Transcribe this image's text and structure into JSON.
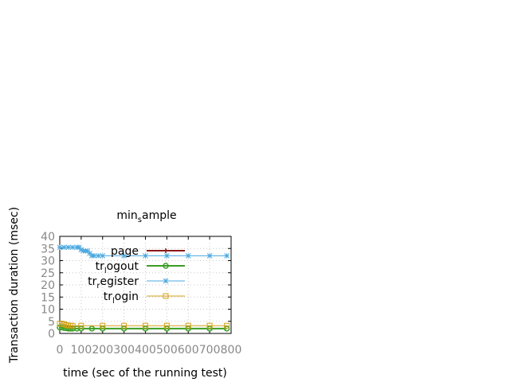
{
  "chart_data": {
    "type": "line",
    "title": "min_sample",
    "title_main": "min",
    "title_sub": "s",
    "title_rest": "ample",
    "xlabel": "time (sec of the running test)",
    "ylabel": "Transaction duration (msec)",
    "xlim": [
      0,
      800
    ],
    "ylim": [
      0,
      40
    ],
    "xticks": [
      "0",
      "100",
      "200",
      "300",
      "400",
      "500",
      "600",
      "700",
      "800"
    ],
    "yticks": [
      "0",
      "5",
      "10",
      "15",
      "20",
      "25",
      "30",
      "35",
      "40"
    ],
    "grid": true,
    "legend_position": "top-right",
    "series": [
      {
        "name": "page",
        "name_main": "page",
        "name_sub": "",
        "name_rest": "",
        "color": "#8b1a1a",
        "marker": "plus",
        "line_width": 2,
        "x": [],
        "y": []
      },
      {
        "name": "tr_logout",
        "name_main": "tr",
        "name_sub": "l",
        "name_rest": "ogout",
        "color": "#3a9d23",
        "marker": "circle",
        "line_width": 2,
        "x": [
          0,
          10,
          20,
          30,
          40,
          50,
          60,
          80,
          100,
          150,
          200,
          300,
          400,
          500,
          600,
          700,
          780
        ],
        "y": [
          2.5,
          2.5,
          2.3,
          2.2,
          2.0,
          2.0,
          2.0,
          2.0,
          2.0,
          2.0,
          2.0,
          2.0,
          2.0,
          2.0,
          2.0,
          2.0,
          2.0
        ]
      },
      {
        "name": "tr_register",
        "name_main": "tr",
        "name_sub": "r",
        "name_rest": "egister",
        "color": "#4aa8e0",
        "marker": "star",
        "line_width": 1,
        "x": [
          0,
          20,
          40,
          60,
          80,
          90,
          100,
          110,
          120,
          130,
          140,
          150,
          160,
          180,
          200,
          300,
          400,
          500,
          600,
          700,
          780
        ],
        "y": [
          35.5,
          35.5,
          35.5,
          35.5,
          35.5,
          35.5,
          34.5,
          34.0,
          34.0,
          34.0,
          33.0,
          32.0,
          32.0,
          32.0,
          32.0,
          32.0,
          32.0,
          32.0,
          32.0,
          32.0,
          32.0
        ]
      },
      {
        "name": "tr_login",
        "name_main": "tr",
        "name_sub": "l",
        "name_rest": "ogin",
        "color": "#d4a017",
        "marker": "square",
        "line_width": 1,
        "x": [
          0,
          10,
          20,
          30,
          40,
          50,
          60,
          100,
          200,
          300,
          400,
          500,
          600,
          700,
          780
        ],
        "y": [
          4.0,
          4.0,
          3.8,
          3.5,
          3.3,
          3.2,
          3.2,
          3.2,
          3.2,
          3.2,
          3.2,
          3.2,
          3.2,
          3.2,
          3.2
        ]
      }
    ]
  }
}
